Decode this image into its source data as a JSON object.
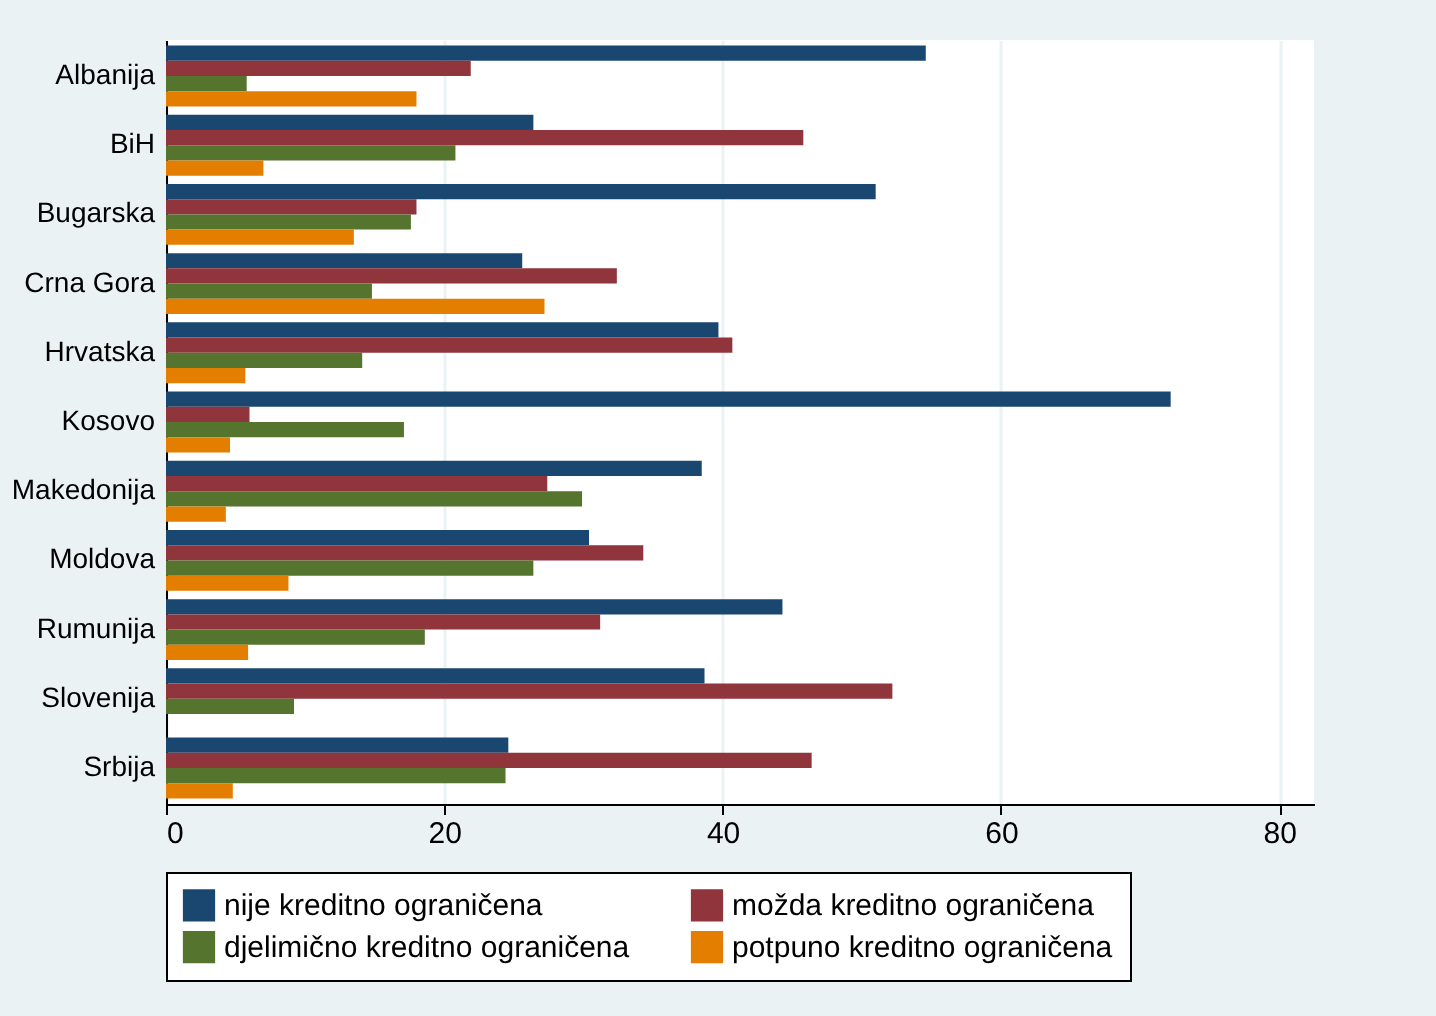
{
  "chart_data": {
    "type": "bar",
    "orientation": "horizontal",
    "categories": [
      "Albanija",
      "BiH",
      "Bugarska",
      "Crna Gora",
      "Hrvatska",
      "Kosovo",
      "Makedonija",
      "Moldova",
      "Rumunija",
      "Slovenija",
      "Srbija"
    ],
    "series": [
      {
        "name": "nije kreditno ograničena",
        "color": "#1a476f",
        "values": [
          54.6,
          26.4,
          51.0,
          25.6,
          39.7,
          72.2,
          38.5,
          30.4,
          44.3,
          38.7,
          24.6
        ]
      },
      {
        "name": "možda kreditno ograničena",
        "color": "#90353b",
        "values": [
          21.9,
          45.8,
          18.0,
          32.4,
          40.7,
          6.0,
          27.4,
          34.3,
          31.2,
          52.2,
          46.4
        ]
      },
      {
        "name": "djelimično kreditno ograničena",
        "color": "#55752f",
        "values": [
          5.8,
          20.8,
          17.6,
          14.8,
          14.1,
          17.1,
          29.9,
          26.4,
          18.6,
          9.2,
          24.4
        ]
      },
      {
        "name": "potpuno kreditno ograničena",
        "color": "#e37e00",
        "values": [
          18.0,
          7.0,
          13.5,
          27.2,
          5.7,
          4.6,
          4.3,
          8.8,
          5.9,
          null,
          4.8
        ]
      }
    ],
    "xlim": [
      0,
      82.5
    ],
    "xticks": [
      0,
      20,
      40,
      60,
      80
    ],
    "grid": "x",
    "legend": "bottom"
  }
}
